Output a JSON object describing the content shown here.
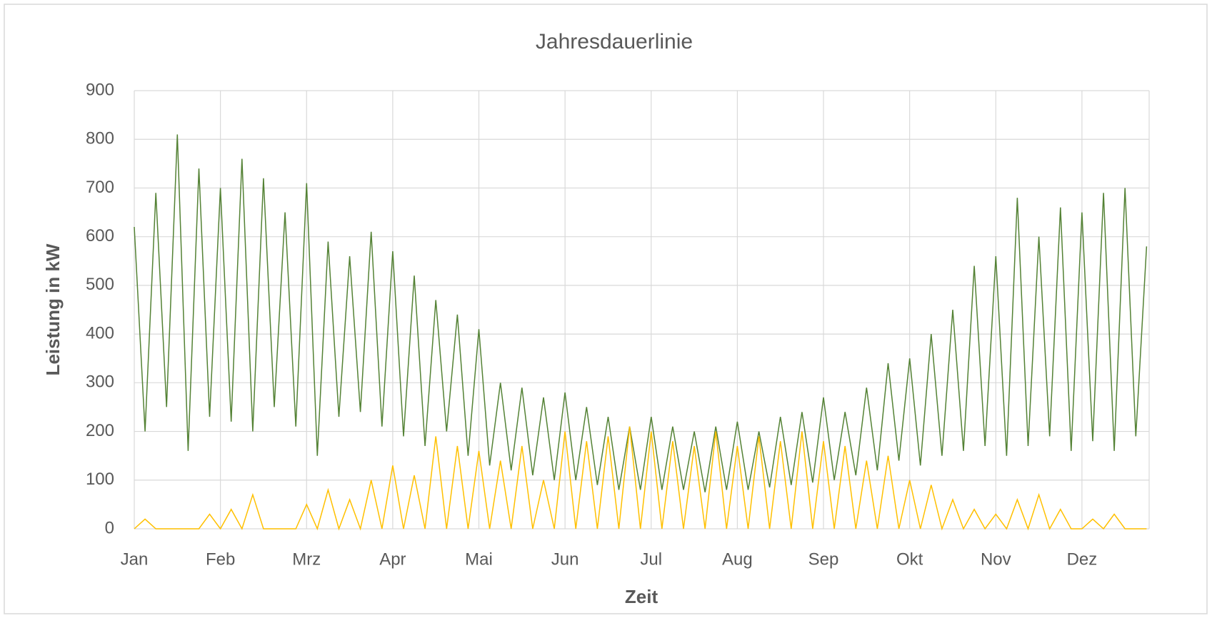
{
  "chart_data": {
    "type": "line",
    "title": "Jahresdauerlinie",
    "x_label": "Zeit",
    "y_label": "Leistung in kW",
    "xlim": [
      0,
      11.78
    ],
    "xticks": [
      {
        "value": 0,
        "label": "Jan"
      },
      {
        "value": 1,
        "label": "Feb"
      },
      {
        "value": 2,
        "label": "Mrz"
      },
      {
        "value": 3,
        "label": "Apr"
      },
      {
        "value": 4,
        "label": "Mai"
      },
      {
        "value": 5,
        "label": "Jun"
      },
      {
        "value": 6,
        "label": "Jul"
      },
      {
        "value": 7,
        "label": "Aug"
      },
      {
        "value": 8,
        "label": "Sep"
      },
      {
        "value": 9,
        "label": "Okt"
      },
      {
        "value": 10,
        "label": "Nov"
      },
      {
        "value": 11,
        "label": "Dez"
      }
    ],
    "ylim": [
      0,
      900
    ],
    "yticks": [
      0,
      100,
      200,
      300,
      400,
      500,
      600,
      700,
      800,
      900
    ],
    "grid": true,
    "x": [
      0,
      0.125,
      0.25,
      0.375,
      0.5,
      0.625,
      0.75,
      0.875,
      1,
      1.125,
      1.25,
      1.375,
      1.5,
      1.625,
      1.75,
      1.875,
      2,
      2.125,
      2.25,
      2.375,
      2.5,
      2.625,
      2.75,
      2.875,
      3,
      3.125,
      3.25,
      3.375,
      3.5,
      3.625,
      3.75,
      3.875,
      4,
      4.125,
      4.25,
      4.375,
      4.5,
      4.625,
      4.75,
      4.875,
      5,
      5.125,
      5.25,
      5.375,
      5.5,
      5.625,
      5.75,
      5.875,
      6,
      6.125,
      6.25,
      6.375,
      6.5,
      6.625,
      6.75,
      6.875,
      7,
      7.125,
      7.25,
      7.375,
      7.5,
      7.625,
      7.75,
      7.875,
      8,
      8.125,
      8.25,
      8.375,
      8.5,
      8.625,
      8.75,
      8.875,
      9,
      9.125,
      9.25,
      9.375,
      9.5,
      9.625,
      9.75,
      9.875,
      10,
      10.125,
      10.25,
      10.375,
      10.5,
      10.625,
      10.75,
      10.875,
      11,
      11.125,
      11.25,
      11.375,
      11.5,
      11.625,
      11.75
    ],
    "series": [
      {
        "color": "#548235",
        "values": [
          620,
          200,
          690,
          250,
          810,
          160,
          740,
          230,
          700,
          220,
          760,
          200,
          720,
          250,
          650,
          210,
          710,
          150,
          590,
          230,
          560,
          240,
          610,
          210,
          570,
          190,
          520,
          170,
          470,
          200,
          440,
          150,
          410,
          130,
          300,
          120,
          290,
          110,
          270,
          100,
          280,
          100,
          250,
          90,
          230,
          80,
          210,
          80,
          230,
          80,
          210,
          80,
          200,
          75,
          210,
          80,
          220,
          80,
          200,
          85,
          230,
          90,
          240,
          95,
          270,
          100,
          240,
          110,
          290,
          120,
          340,
          140,
          350,
          130,
          400,
          150,
          450,
          160,
          540,
          170,
          560,
          150,
          680,
          170,
          600,
          190,
          660,
          160,
          650,
          180,
          690,
          160,
          700,
          190,
          580
        ]
      },
      {
        "color": "#ffc000",
        "values": [
          0,
          20,
          0,
          0,
          0,
          0,
          0,
          30,
          0,
          40,
          0,
          70,
          0,
          0,
          0,
          0,
          50,
          0,
          80,
          0,
          60,
          0,
          100,
          0,
          130,
          0,
          110,
          0,
          190,
          0,
          170,
          0,
          160,
          0,
          140,
          0,
          170,
          0,
          100,
          0,
          200,
          0,
          180,
          0,
          190,
          0,
          210,
          0,
          200,
          0,
          180,
          0,
          170,
          0,
          200,
          0,
          170,
          0,
          190,
          0,
          180,
          0,
          200,
          0,
          180,
          0,
          170,
          0,
          140,
          0,
          150,
          0,
          100,
          0,
          90,
          0,
          60,
          0,
          40,
          0,
          30,
          0,
          60,
          0,
          70,
          0,
          40,
          0,
          0,
          20,
          0,
          30,
          0,
          0,
          0
        ]
      }
    ]
  }
}
